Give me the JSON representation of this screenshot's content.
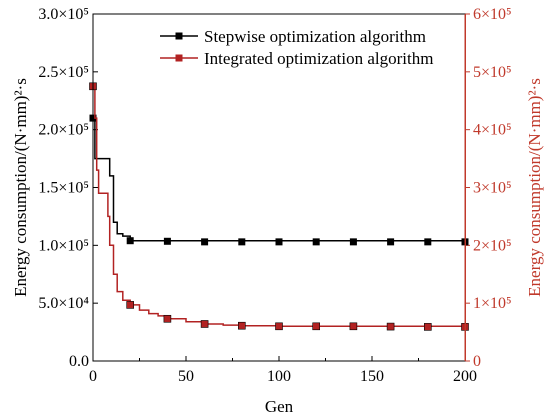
{
  "chart_data": {
    "type": "line",
    "xlabel": "Gen",
    "ylabel_left": "Energy consumption/(N·mm)²·s",
    "ylabel_right": "Energy consumption/(N·mm)²·s",
    "xlim": [
      0,
      200
    ],
    "xticks": [
      "0",
      "50",
      "100",
      "150",
      "200"
    ],
    "ylim_left": [
      0,
      300000
    ],
    "yticks_left": [
      {
        "value": 0,
        "label": "0.0"
      },
      {
        "value": 50000,
        "label": "5.0×10⁴"
      },
      {
        "value": 100000,
        "label": "1.0×10⁵"
      },
      {
        "value": 150000,
        "label": "1.5×10⁵"
      },
      {
        "value": 200000,
        "label": "2.0×10⁵"
      },
      {
        "value": 250000,
        "label": "2.5×10⁵"
      },
      {
        "value": 300000,
        "label": "3.0×10⁵"
      }
    ],
    "ylim_right": [
      0,
      600000
    ],
    "yticks_right": [
      {
        "value": 0,
        "label": "0"
      },
      {
        "value": 100000,
        "label": "1×10⁵"
      },
      {
        "value": 200000,
        "label": "2×10⁵"
      },
      {
        "value": 300000,
        "label": "3×10⁵"
      },
      {
        "value": 400000,
        "label": "4×10⁵"
      },
      {
        "value": 500000,
        "label": "5×10⁵"
      },
      {
        "value": 600000,
        "label": "6×10⁵"
      }
    ],
    "legend_position": "top-right",
    "series": [
      {
        "name": "Stepwise optimization algorithm",
        "axis": "left",
        "color": "#000000",
        "step": [
          [
            0,
            210000
          ],
          [
            1,
            175000
          ],
          [
            8,
            175000
          ],
          [
            9,
            160000
          ],
          [
            10,
            160000
          ],
          [
            11,
            120000
          ],
          [
            12,
            120000
          ],
          [
            13,
            110000
          ],
          [
            15,
            110000
          ],
          [
            16,
            108000
          ],
          [
            19,
            108000
          ],
          [
            20,
            104000
          ],
          [
            200,
            104000
          ]
        ],
        "markers": [
          [
            0,
            210000
          ],
          [
            20,
            104000
          ],
          [
            40,
            103500
          ],
          [
            60,
            103000
          ],
          [
            80,
            103000
          ],
          [
            100,
            103000
          ],
          [
            120,
            103000
          ],
          [
            140,
            103000
          ],
          [
            160,
            103000
          ],
          [
            180,
            103000
          ],
          [
            200,
            103000
          ]
        ]
      },
      {
        "name": "Integrated optimization algorithm",
        "axis": "right",
        "color": "#b22222",
        "step": [
          [
            0,
            475000
          ],
          [
            1,
            420000
          ],
          [
            2,
            330000
          ],
          [
            3,
            290000
          ],
          [
            7,
            290000
          ],
          [
            8,
            250000
          ],
          [
            9,
            200000
          ],
          [
            11,
            150000
          ],
          [
            13,
            120000
          ],
          [
            16,
            105000
          ],
          [
            20,
            97000
          ],
          [
            25,
            88000
          ],
          [
            30,
            82000
          ],
          [
            35,
            78000
          ],
          [
            40,
            73000
          ],
          [
            50,
            68000
          ],
          [
            60,
            64000
          ],
          [
            70,
            62000
          ],
          [
            80,
            61000
          ],
          [
            100,
            60000
          ],
          [
            120,
            60000
          ],
          [
            200,
            59000
          ]
        ],
        "markers": [
          [
            0,
            475000
          ],
          [
            20,
            97000
          ],
          [
            40,
            73000
          ],
          [
            60,
            64000
          ],
          [
            80,
            61000
          ],
          [
            100,
            60000
          ],
          [
            120,
            60000
          ],
          [
            140,
            60000
          ],
          [
            160,
            59500
          ],
          [
            180,
            59000
          ],
          [
            200,
            59000
          ]
        ]
      }
    ]
  }
}
